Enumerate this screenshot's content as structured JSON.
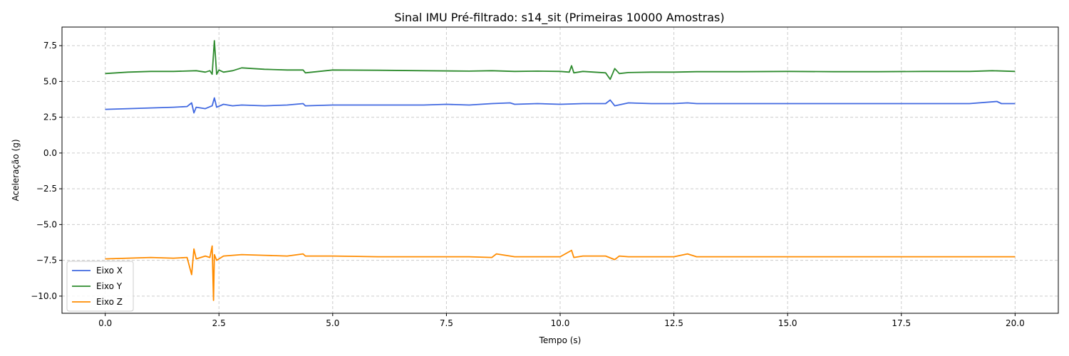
{
  "chart_data": {
    "type": "line",
    "title": "Sinal IMU Pré-filtrado: s14_sit (Primeiras 10000 Amostras)",
    "xlabel": "Tempo (s)",
    "ylabel": "Aceleração (g)",
    "xlim": [
      -0.95,
      20.95
    ],
    "ylim": [
      -11.2,
      8.8
    ],
    "xticks": [
      0.0,
      2.5,
      5.0,
      7.5,
      10.0,
      12.5,
      15.0,
      17.5,
      20.0
    ],
    "xtick_labels": [
      "0.0",
      "2.5",
      "5.0",
      "7.5",
      "10.0",
      "12.5",
      "15.0",
      "17.5",
      "20.0"
    ],
    "yticks": [
      7.5,
      5.0,
      2.5,
      0.0,
      -2.5,
      -5.0,
      -7.5,
      -10.0
    ],
    "ytick_labels": [
      "7.5",
      "5.0",
      "2.5",
      "0.0",
      "−2.5",
      "−5.0",
      "−7.5",
      "−10.0"
    ],
    "grid": true,
    "legend_position": "lower-left",
    "series": [
      {
        "name": "Eixo X",
        "color": "#4169E1",
        "x": [
          0,
          0.5,
          1.0,
          1.5,
          1.8,
          1.9,
          1.95,
          2.0,
          2.2,
          2.35,
          2.4,
          2.45,
          2.6,
          2.8,
          3.0,
          3.5,
          4.0,
          4.35,
          4.4,
          5.0,
          6.0,
          7.0,
          7.5,
          8.0,
          8.5,
          8.9,
          9.0,
          9.5,
          10.0,
          10.5,
          11.0,
          11.1,
          11.2,
          11.5,
          12.0,
          12.5,
          12.8,
          13.0,
          14.0,
          15.0,
          16.0,
          17.0,
          18.0,
          19.0,
          19.6,
          19.7,
          20.0
        ],
        "y": [
          3.05,
          3.1,
          3.15,
          3.2,
          3.25,
          3.5,
          2.8,
          3.2,
          3.1,
          3.3,
          3.85,
          3.2,
          3.4,
          3.3,
          3.35,
          3.3,
          3.35,
          3.45,
          3.3,
          3.35,
          3.35,
          3.35,
          3.4,
          3.35,
          3.45,
          3.5,
          3.4,
          3.45,
          3.4,
          3.45,
          3.45,
          3.7,
          3.3,
          3.5,
          3.45,
          3.45,
          3.5,
          3.45,
          3.45,
          3.45,
          3.45,
          3.45,
          3.45,
          3.45,
          3.6,
          3.45,
          3.45
        ]
      },
      {
        "name": "Eixo Y",
        "color": "#2E8B2E",
        "x": [
          0,
          0.5,
          1.0,
          1.5,
          2.0,
          2.2,
          2.3,
          2.35,
          2.4,
          2.45,
          2.5,
          2.6,
          2.8,
          3.0,
          3.5,
          4.0,
          4.35,
          4.4,
          5.0,
          6.0,
          7.0,
          8.0,
          8.5,
          9.0,
          9.5,
          10.0,
          10.2,
          10.25,
          10.3,
          10.5,
          11.0,
          11.1,
          11.2,
          11.3,
          11.5,
          12.0,
          12.5,
          13.0,
          14.0,
          15.0,
          16.0,
          17.0,
          18.0,
          19.0,
          19.5,
          20.0
        ],
        "y": [
          5.55,
          5.65,
          5.7,
          5.7,
          5.75,
          5.65,
          5.75,
          5.5,
          7.85,
          5.5,
          5.8,
          5.65,
          5.75,
          5.95,
          5.85,
          5.8,
          5.8,
          5.6,
          5.8,
          5.78,
          5.75,
          5.72,
          5.75,
          5.7,
          5.72,
          5.7,
          5.65,
          6.1,
          5.6,
          5.7,
          5.6,
          5.15,
          5.9,
          5.55,
          5.62,
          5.65,
          5.65,
          5.68,
          5.68,
          5.7,
          5.68,
          5.68,
          5.7,
          5.7,
          5.75,
          5.7
        ]
      },
      {
        "name": "Eixo Z",
        "color": "#FF8C00",
        "x": [
          0,
          0.5,
          1.0,
          1.5,
          1.8,
          1.9,
          1.95,
          2.0,
          2.2,
          2.3,
          2.35,
          2.38,
          2.4,
          2.45,
          2.6,
          3.0,
          3.5,
          4.0,
          4.35,
          4.4,
          5.0,
          6.0,
          7.0,
          8.0,
          8.5,
          8.6,
          9.0,
          10.0,
          10.25,
          10.3,
          10.5,
          11.0,
          11.2,
          11.3,
          11.5,
          12.0,
          12.5,
          12.8,
          13.0,
          14.0,
          15.0,
          16.0,
          17.0,
          18.0,
          19.0,
          20.0
        ],
        "y": [
          -7.4,
          -7.35,
          -7.3,
          -7.35,
          -7.3,
          -8.5,
          -6.7,
          -7.4,
          -7.2,
          -7.3,
          -6.5,
          -10.3,
          -7.1,
          -7.5,
          -7.2,
          -7.1,
          -7.15,
          -7.2,
          -7.05,
          -7.2,
          -7.2,
          -7.25,
          -7.25,
          -7.25,
          -7.3,
          -7.05,
          -7.25,
          -7.25,
          -6.8,
          -7.3,
          -7.2,
          -7.2,
          -7.45,
          -7.2,
          -7.25,
          -7.25,
          -7.25,
          -7.05,
          -7.25,
          -7.25,
          -7.25,
          -7.25,
          -7.25,
          -7.25,
          -7.25,
          -7.25
        ]
      }
    ]
  }
}
